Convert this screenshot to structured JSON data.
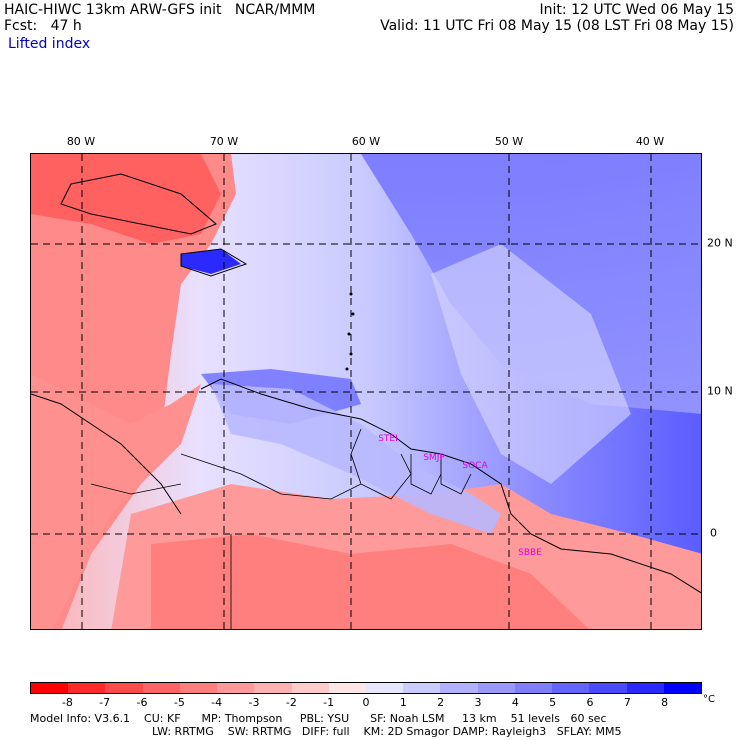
{
  "header": {
    "model_line": "HAIC-HIWC 13km ARW-GFS init   NCAR/MMM",
    "forecast_line": "Fcst:   47 h",
    "field_name": "Lifted index",
    "init_line": "Init: 12 UTC Wed 06 May 15",
    "valid_line": "Valid: 11 UTC Fri 08 May 15 (08 LST Fri 08 May 15)"
  },
  "axes": {
    "lon_labels": [
      "80 W",
      "70 W",
      "60 W",
      "50 W",
      "40 W"
    ],
    "lat_labels": [
      "20 N",
      "10 N",
      "0"
    ]
  },
  "stations": [
    "STEI",
    "SMJP",
    "SOCA",
    "SBBE"
  ],
  "colorbar": {
    "labels": [
      "-8",
      "-7",
      "-6",
      "-5",
      "-4",
      "-3",
      "-2",
      "-1",
      "0",
      "1",
      "2",
      "3",
      "4",
      "5",
      "6",
      "7",
      "8"
    ],
    "unit": "°C",
    "colors": [
      "#ff0000",
      "#ff2a2a",
      "#ff4a4a",
      "#ff6464",
      "#ff7e7e",
      "#ff9898",
      "#ffb2b2",
      "#ffcccc",
      "#ffe6e6",
      "#e6e6ff",
      "#ccccff",
      "#b2b2ff",
      "#9898ff",
      "#7e7eff",
      "#6464ff",
      "#4a4aff",
      "#2a2aff",
      "#0000ff"
    ]
  },
  "footer": {
    "line1": "Model Info: V3.6.1    CU: KF      MP: Thompson     PBL: YSU      SF: Noah LSM     13 km    51 levels   60 sec",
    "line2": "LW: RRTMG    SW: RRTMG   DIFF: full    KM: 2D Smagor DAMP: Rayleigh3   SFLAY: MM5"
  }
}
